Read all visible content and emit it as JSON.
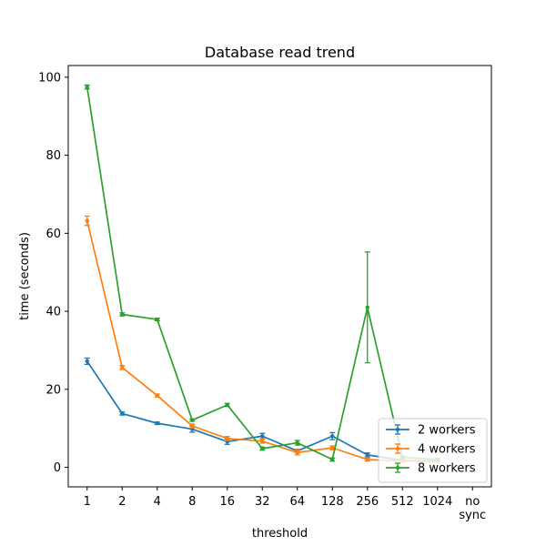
{
  "chart_data": {
    "type": "line",
    "title": "Database read trend",
    "xlabel": "threshold",
    "ylabel": "time (seconds)",
    "categories": [
      "1",
      "2",
      "4",
      "8",
      "16",
      "32",
      "64",
      "128",
      "256",
      "512",
      "1024",
      "no\nsync"
    ],
    "ylim": [
      -5,
      103
    ],
    "yticks": [
      0,
      20,
      40,
      60,
      80,
      100
    ],
    "grid": false,
    "legend_position": "lower-right",
    "series": [
      {
        "name": "2 workers",
        "color": "#1f77b4",
        "values": [
          27.2,
          13.8,
          11.3,
          9.8,
          6.6,
          8.0,
          4.2,
          8.0,
          3.2,
          1.8,
          1.6,
          null
        ],
        "errors": [
          0.8,
          0.4,
          0.3,
          0.8,
          0.7,
          0.7,
          0.4,
          0.9,
          0.5,
          0.2,
          0.2,
          null
        ]
      },
      {
        "name": "4 workers",
        "color": "#ff7f0e",
        "values": [
          63.2,
          25.6,
          18.4,
          10.6,
          7.4,
          6.7,
          3.8,
          5.0,
          2.0,
          1.6,
          1.4,
          null
        ],
        "errors": [
          1.2,
          0.5,
          0.4,
          0.5,
          0.5,
          0.5,
          0.6,
          0.5,
          0.4,
          0.2,
          0.2,
          null
        ]
      },
      {
        "name": "8 workers",
        "color": "#2ca02c",
        "values": [
          97.5,
          39.2,
          37.9,
          12.1,
          16.0,
          4.8,
          6.3,
          2.0,
          41.0,
          2.6,
          2.0,
          null
        ],
        "errors": [
          0.5,
          0.4,
          0.3,
          0.3,
          0.4,
          0.4,
          0.6,
          0.4,
          14.2,
          0.3,
          0.3,
          null
        ]
      }
    ]
  }
}
